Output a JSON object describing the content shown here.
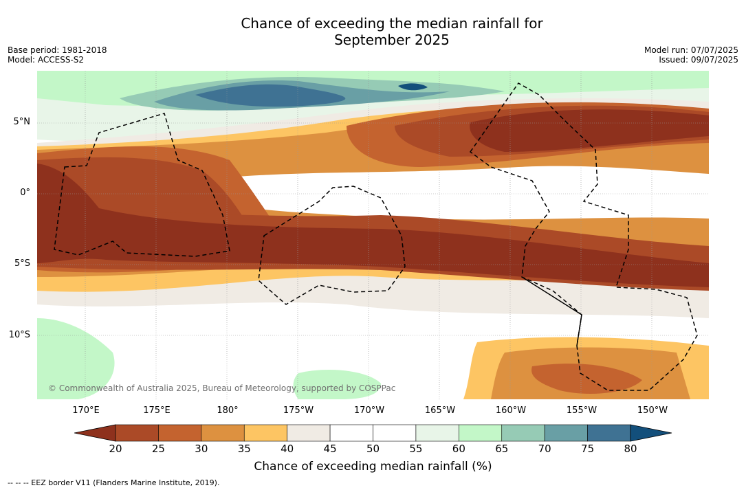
{
  "title": {
    "line1": "Chance of exceeding the median rainfall for",
    "line2": "September 2025"
  },
  "meta_left": {
    "base_period": "Base period: 1981-2018",
    "model": "Model: ACCESS-S2"
  },
  "meta_right": {
    "model_run": "Model run: 07/07/2025",
    "issued": "Issued: 09/07/2025"
  },
  "map": {
    "lat_labels": [
      "5°N",
      "0°",
      "5°S",
      "10°S"
    ],
    "lon_labels": [
      "170°E",
      "175°E",
      "180°",
      "175°W",
      "170°W",
      "165°W",
      "160°W",
      "155°W",
      "150°W"
    ],
    "copyright": "© Commonwealth of Australia 2025, Bureau of Meteorology, supported by COSPPac",
    "eez_line_color": "#000000"
  },
  "colorbar": {
    "ticks": [
      "20",
      "25",
      "30",
      "35",
      "40",
      "45",
      "50",
      "55",
      "60",
      "65",
      "70",
      "75",
      "80"
    ],
    "colors": [
      "#8e311d",
      "#ab4a27",
      "#c4632f",
      "#dd9140",
      "#fdc563",
      "#f0ebe4",
      "#ffffff",
      "#ffffff",
      "#e8f5e8",
      "#c3f7c8",
      "#96cbb5",
      "#699fa5",
      "#3f7293",
      "#134f7b"
    ],
    "label": "Chance of exceeding median rainfall (%)"
  },
  "footnote": "--  --  -- EEZ border V11 (Flanders Marine Institute, 2019)."
}
